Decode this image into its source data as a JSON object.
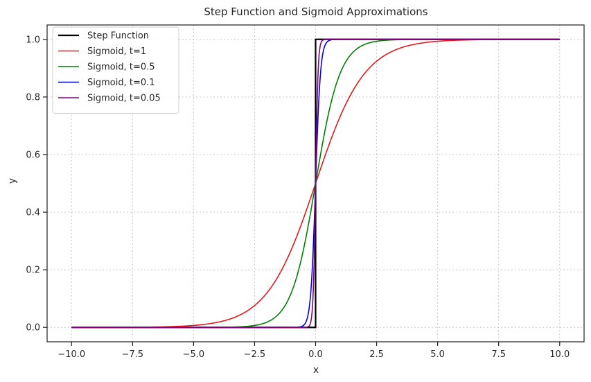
{
  "chart_data": {
    "type": "line",
    "title": "Step Function and Sigmoid Approximations",
    "xlabel": "x",
    "ylabel": "y",
    "xlim": [
      -11,
      11
    ],
    "ylim": [
      -0.05,
      1.05
    ],
    "xticks": [
      -10.0,
      -7.5,
      -5.0,
      -2.5,
      0.0,
      2.5,
      5.0,
      7.5,
      10.0
    ],
    "xtick_labels": [
      "−10.0",
      "−7.5",
      "−5.0",
      "−2.5",
      "0.0",
      "2.5",
      "5.0",
      "7.5",
      "10.0"
    ],
    "yticks": [
      0.0,
      0.2,
      0.4,
      0.6,
      0.8,
      1.0
    ],
    "ytick_labels": [
      "0.0",
      "0.2",
      "0.4",
      "0.6",
      "0.8",
      "1.0"
    ],
    "grid": true,
    "legend_position": "top-left",
    "series": [
      {
        "name": "Step Function",
        "color": "#000000",
        "kind": "step",
        "x": [
          -10,
          0,
          0,
          10
        ],
        "y": [
          0,
          0,
          1,
          1
        ]
      },
      {
        "name": "Sigmoid, t=1",
        "color": "#e41a1c",
        "kind": "sigmoid",
        "t": 1,
        "x_range": [
          -10,
          10
        ]
      },
      {
        "name": "Sigmoid, t=0.5",
        "color": "#008000",
        "kind": "sigmoid",
        "t": 0.5,
        "x_range": [
          -10,
          10
        ]
      },
      {
        "name": "Sigmoid, t=0.1",
        "color": "#0000e6",
        "kind": "sigmoid",
        "t": 0.1,
        "x_range": [
          -10,
          10
        ]
      },
      {
        "name": "Sigmoid, t=0.05",
        "color": "#800080",
        "kind": "sigmoid",
        "t": 0.05,
        "x_range": [
          -10,
          10
        ]
      }
    ]
  }
}
